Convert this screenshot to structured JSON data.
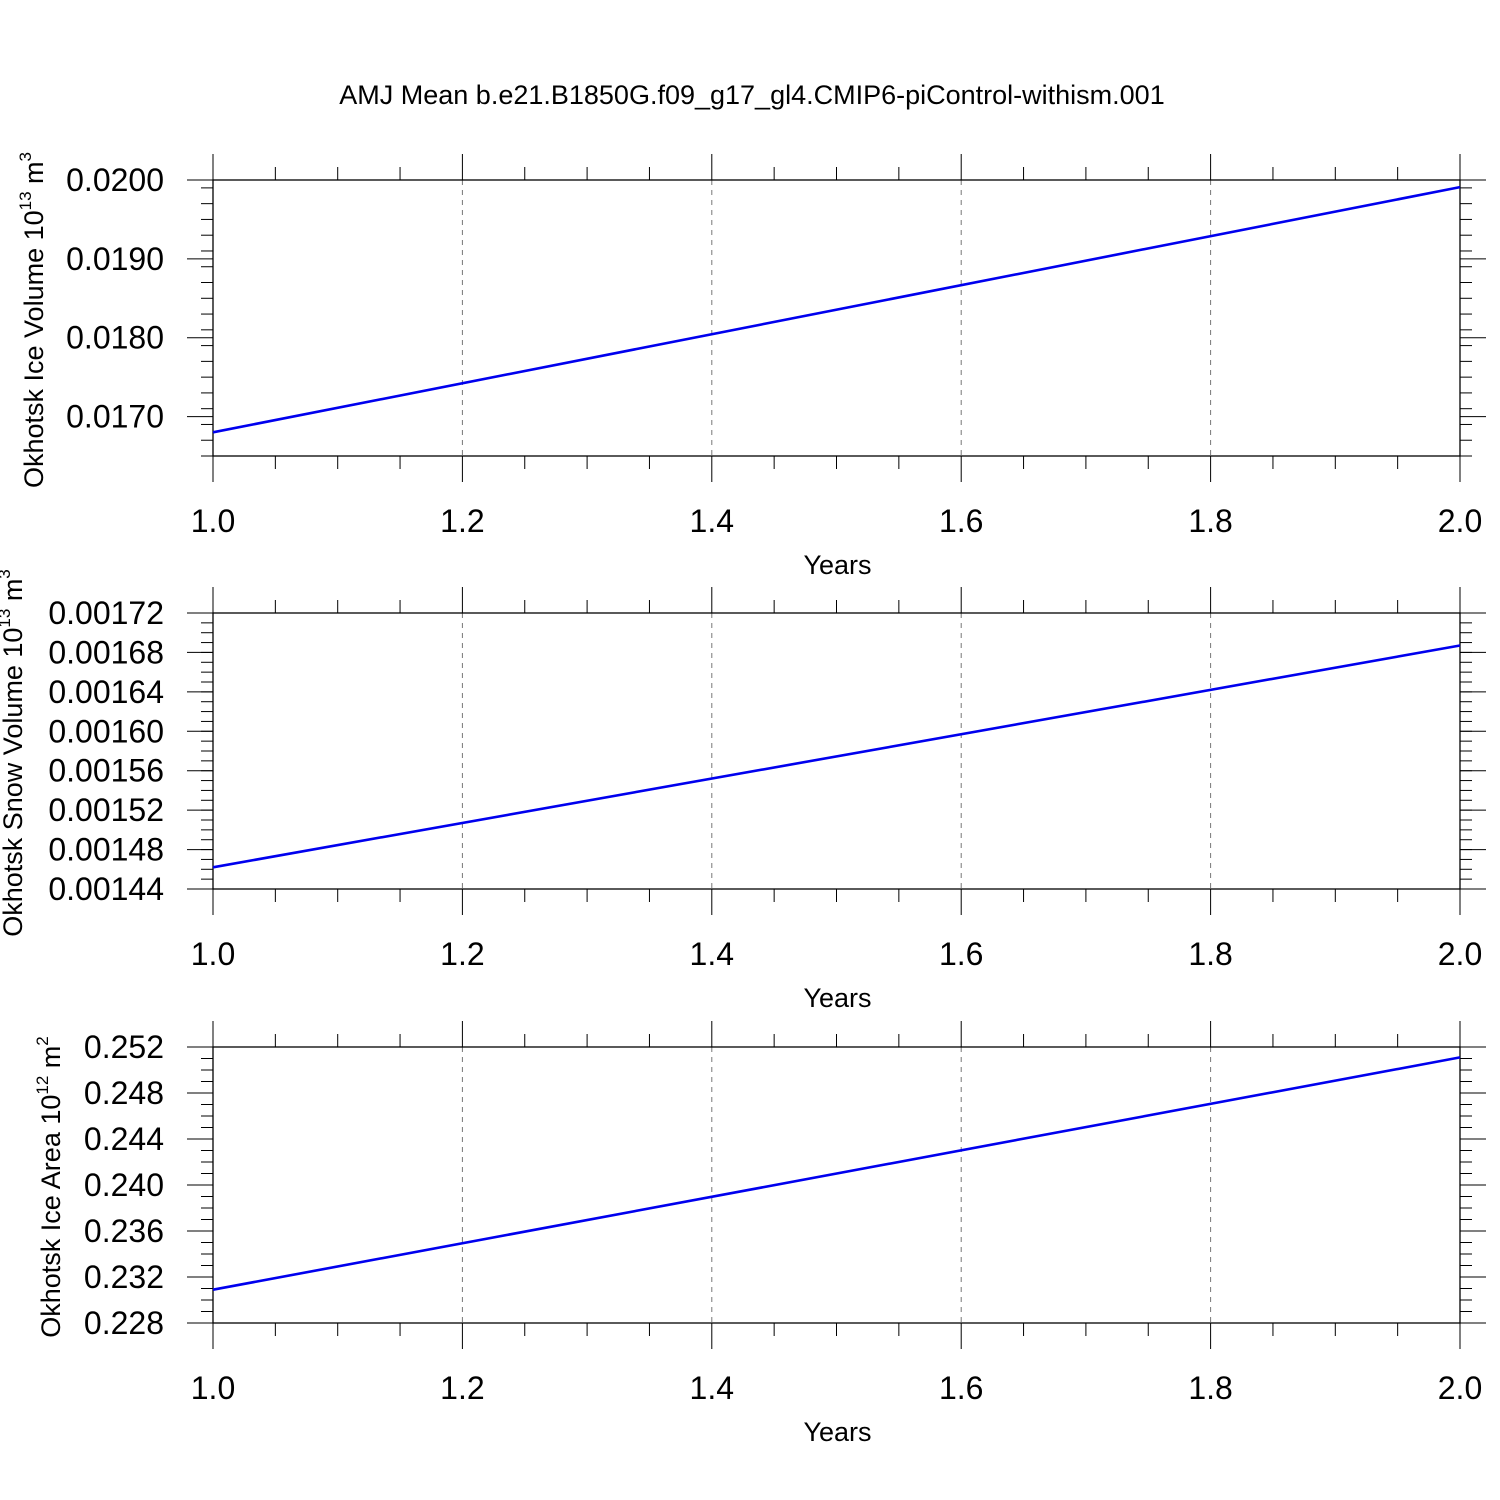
{
  "title": "AMJ Mean b.e21.B1850G.f09_g17_gl4.CMIP6-piControl-withism.001",
  "chart_data": [
    {
      "type": "line",
      "xlabel": "Years",
      "ylabel": {
        "main": "Okhotsk Ice Volume 10",
        "exp": "13",
        "unit": " m",
        "unit_exp": "3"
      },
      "xlim": [
        1.0,
        2.0
      ],
      "ylim": [
        0.0165,
        0.02
      ],
      "x_ticks": [
        "1.0",
        "1.2",
        "1.4",
        "1.6",
        "1.8",
        "2.0"
      ],
      "y_ticks": [
        "0.0170",
        "0.0180",
        "0.0190",
        "0.0200"
      ],
      "y_tick_values": [
        0.017,
        0.018,
        0.019,
        0.02
      ],
      "y_minor_step": 0.0002,
      "x_minor_step": 0.05,
      "grid": "vertical dashed",
      "series": [
        {
          "x": [
            1.0,
            2.0
          ],
          "y": [
            0.0168,
            0.01991
          ],
          "color": "#0000ee"
        }
      ]
    },
    {
      "type": "line",
      "xlabel": "Years",
      "ylabel": {
        "main": "Okhotsk Snow Volume 10",
        "exp": "13",
        "unit": " m",
        "unit_exp": "3"
      },
      "xlim": [
        1.0,
        2.0
      ],
      "ylim": [
        0.00144,
        0.00172
      ],
      "x_ticks": [
        "1.0",
        "1.2",
        "1.4",
        "1.6",
        "1.8",
        "2.0"
      ],
      "y_ticks": [
        "0.00144",
        "0.00148",
        "0.00152",
        "0.00156",
        "0.00160",
        "0.00164",
        "0.00168",
        "0.00172"
      ],
      "y_tick_values": [
        0.00144,
        0.00148,
        0.00152,
        0.00156,
        0.0016,
        0.00164,
        0.00168,
        0.00172
      ],
      "y_minor_step": 1e-05,
      "x_minor_step": 0.05,
      "grid": "vertical dashed",
      "series": [
        {
          "x": [
            1.0,
            2.0
          ],
          "y": [
            0.001462,
            0.001687
          ],
          "color": "#0000ee"
        }
      ]
    },
    {
      "type": "line",
      "xlabel": "Years",
      "ylabel": {
        "main": "Okhotsk Ice Area 10",
        "exp": "12",
        "unit": " m",
        "unit_exp": "2"
      },
      "xlim": [
        1.0,
        2.0
      ],
      "ylim": [
        0.228,
        0.252
      ],
      "x_ticks": [
        "1.0",
        "1.2",
        "1.4",
        "1.6",
        "1.8",
        "2.0"
      ],
      "y_ticks": [
        "0.228",
        "0.232",
        "0.236",
        "0.240",
        "0.244",
        "0.248",
        "0.252"
      ],
      "y_tick_values": [
        0.228,
        0.232,
        0.236,
        0.24,
        0.244,
        0.248,
        0.252
      ],
      "y_minor_step": 0.001,
      "x_minor_step": 0.05,
      "grid": "vertical dashed",
      "series": [
        {
          "x": [
            1.0,
            2.0
          ],
          "y": [
            0.2309,
            0.2511
          ],
          "color": "#0000ee"
        }
      ]
    }
  ]
}
